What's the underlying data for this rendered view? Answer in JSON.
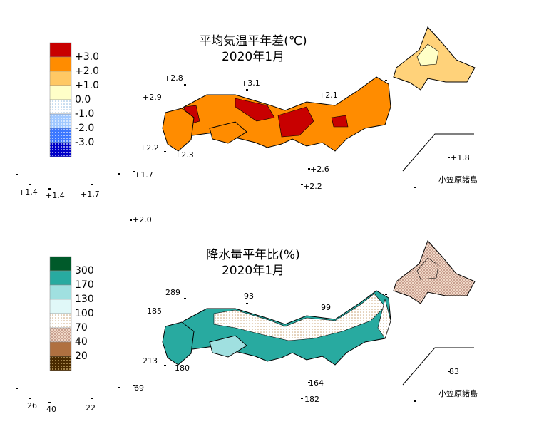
{
  "temperature": {
    "title": "平均気温平年差(℃)",
    "subtitle": "2020年1月",
    "legend_labels": [
      "+3.0",
      "+2.0",
      "+1.0",
      "0.0",
      "-1.0",
      "-2.0",
      "-3.0"
    ],
    "stations": [
      "+2.8",
      "+3.1",
      "+2.9",
      "+2.1",
      "+2.2",
      "+2.3",
      "+2.6",
      "+1.8",
      "+1.7",
      "+1.4",
      "+1.4",
      "+1.7",
      "+2.2",
      "+2.0"
    ],
    "island": "小笠原諸島"
  },
  "precipitation": {
    "title": "降水量平年比(%)",
    "subtitle": "2020年1月",
    "legend_labels": [
      "300",
      "170",
      "130",
      "100",
      "70",
      "40",
      "20"
    ],
    "stations": [
      "289",
      "93",
      "185",
      "99",
      "213",
      "180",
      "164",
      "83",
      "69",
      "26",
      "40",
      "22",
      "182"
    ],
    "island": "小笠原諸島"
  }
}
